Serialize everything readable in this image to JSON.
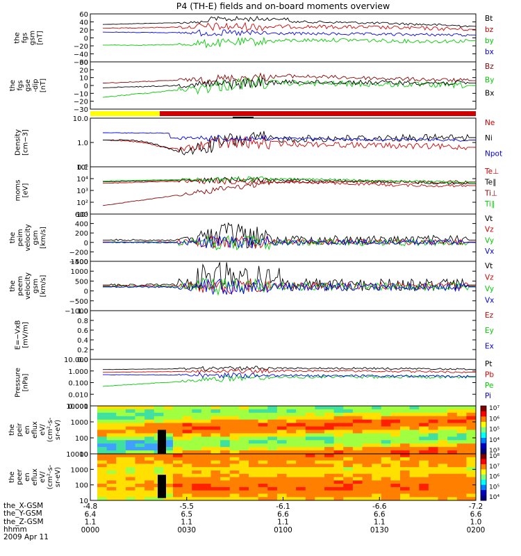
{
  "title": "P4 (TH-E) fields and on-board moments overview",
  "colors": {
    "black": "#000000",
    "red": "#d00000",
    "darkred": "#8b0000",
    "blue": "#0000ee",
    "green": "#00cc00",
    "yellow": "#ffff00"
  },
  "chart_data": [
    {
      "type": "line",
      "ylabel": [
        "the",
        "fgs",
        "gsm",
        "[nT]"
      ],
      "yticks": [
        "60",
        "40",
        "20",
        "0",
        "−20",
        "−40",
        "−60"
      ],
      "ylim": [
        -60,
        60
      ],
      "series": [
        {
          "name": "Bt",
          "color": "#000000"
        },
        {
          "name": "bz",
          "color": "#d00000"
        },
        {
          "name": "by",
          "color": "#00cc00"
        },
        {
          "name": "bx",
          "color": "#0000ee"
        }
      ]
    },
    {
      "type": "line",
      "ylabel": [
        "the",
        "fgs",
        "gse",
        "-dip",
        "[nT]"
      ],
      "yticks": [
        "30",
        "20",
        "10",
        "0",
        "−10",
        "−20",
        "−30"
      ],
      "ylim": [
        -30,
        30
      ],
      "series": [
        {
          "name": "Bz",
          "color": "#8b0000"
        },
        {
          "name": "By",
          "color": "#00cc00"
        },
        {
          "name": "Bx",
          "color": "#000000"
        }
      ]
    },
    {
      "type": "bar",
      "name": "mode-bar",
      "segments": [
        {
          "from": 0,
          "to": 0.18,
          "color": "#ffff00"
        },
        {
          "from": 0.18,
          "to": 1,
          "color": "#d00000"
        }
      ]
    },
    {
      "type": "line",
      "ylabel": [
        "Density",
        "[cm−3]"
      ],
      "yticks": [
        "10.0",
        "1.0",
        "0.1"
      ],
      "log": true,
      "ylim": [
        0.1,
        10
      ],
      "series": [
        {
          "name": "Ne",
          "color": "#d00000"
        },
        {
          "name": "Ni",
          "color": "#000000"
        },
        {
          "name": "Npot",
          "color": "#0000ee"
        }
      ]
    },
    {
      "type": "line",
      "ylabel": [
        "moms",
        "[eV]"
      ],
      "yticks": [
        "10⁵",
        "10⁴",
        "10³",
        "10²",
        "10¹"
      ],
      "log": true,
      "ylim": [
        10,
        100000
      ],
      "series": [
        {
          "name": "Te⊥",
          "color": "#d00000"
        },
        {
          "name": "Te∥",
          "color": "#000000"
        },
        {
          "name": "Ti⊥",
          "color": "#8b0000"
        },
        {
          "name": "Ti∥",
          "color": "#00cc00"
        }
      ]
    },
    {
      "type": "line",
      "ylabel": [
        "the",
        "peim",
        "velocity",
        "gsm",
        "[km/s]"
      ],
      "yticks": [
        "600",
        "400",
        "200",
        "0",
        "−200",
        "−400"
      ],
      "ylim": [
        -400,
        600
      ],
      "series": [
        {
          "name": "Vt",
          "color": "#000000"
        },
        {
          "name": "Vz",
          "color": "#d00000"
        },
        {
          "name": "Vy",
          "color": "#00cc00"
        },
        {
          "name": "Vx",
          "color": "#0000ee"
        }
      ]
    },
    {
      "type": "line",
      "ylabel": [
        "the",
        "peem",
        "velocity",
        "gsm",
        "[km/s]"
      ],
      "yticks": [
        "1500",
        "1000",
        "500",
        "0",
        "−500",
        "−1000"
      ],
      "ylim": [
        -1500,
        1500
      ],
      "series": [
        {
          "name": "Vt",
          "color": "#000000"
        },
        {
          "name": "Vz",
          "color": "#d00000"
        },
        {
          "name": "Vy",
          "color": "#00cc00"
        },
        {
          "name": "Vx",
          "color": "#0000ee"
        }
      ]
    },
    {
      "type": "line",
      "ylabel": [
        "E=−VxB",
        "[mV/m]"
      ],
      "yticks": [
        "1.0",
        "0.8",
        "0.6",
        "0.4",
        "0.2",
        "0.0"
      ],
      "ylim": [
        0,
        1
      ],
      "series": [
        {
          "name": "Ez",
          "color": "#d00000"
        },
        {
          "name": "Ey",
          "color": "#00cc00"
        },
        {
          "name": "Ex",
          "color": "#0000ee"
        }
      ]
    },
    {
      "type": "line",
      "ylabel": [
        "Pressure",
        "[nPa]"
      ],
      "yticks": [
        "10.000",
        "1.000",
        "0.100",
        "0.010",
        "0.001"
      ],
      "log": true,
      "ylim": [
        0.001,
        10
      ],
      "series": [
        {
          "name": "Pt",
          "color": "#000000"
        },
        {
          "name": "Pb",
          "color": "#d00000"
        },
        {
          "name": "Pe",
          "color": "#00cc00"
        },
        {
          "name": "Pi",
          "color": "#0000ee"
        }
      ]
    },
    {
      "type": "heatmap",
      "ylabel": [
        "the",
        "peir",
        "en",
        "eflux",
        "eV/",
        "(cm²-s-",
        "sr-eV)"
      ],
      "yticks": [
        "10000",
        "1000",
        "100",
        "10"
      ],
      "colorbar": [
        "10⁷",
        "10⁶",
        "10⁵",
        "10⁴",
        "10³"
      ]
    },
    {
      "type": "heatmap",
      "ylabel": [
        "the",
        "peer",
        "en",
        "eflux",
        "eV/",
        "(cm²-s-",
        "sr-eV)"
      ],
      "yticks": [
        "10000",
        "1000",
        "100",
        "10"
      ],
      "colorbar": [
        "10⁸",
        "10⁷",
        "10⁶",
        "10⁵",
        "10⁴"
      ]
    }
  ],
  "xaxis": {
    "rows": [
      {
        "label": "the_X-GSM",
        "values": [
          "-4.8",
          "-5.5",
          "-6.1",
          "-6.6",
          "-7.2"
        ]
      },
      {
        "label": "the_Y-GSM",
        "values": [
          "6.4",
          "6.5",
          "6.6",
          "6.6",
          "6.6"
        ]
      },
      {
        "label": "the_Z-GSM",
        "values": [
          "1.1",
          "1.1",
          "1.1",
          "1.1",
          "1.0"
        ]
      },
      {
        "label": "hhmm",
        "values": [
          "0000",
          "0030",
          "0100",
          "0130",
          "0200"
        ]
      }
    ],
    "date": "2009 Apr 11"
  }
}
